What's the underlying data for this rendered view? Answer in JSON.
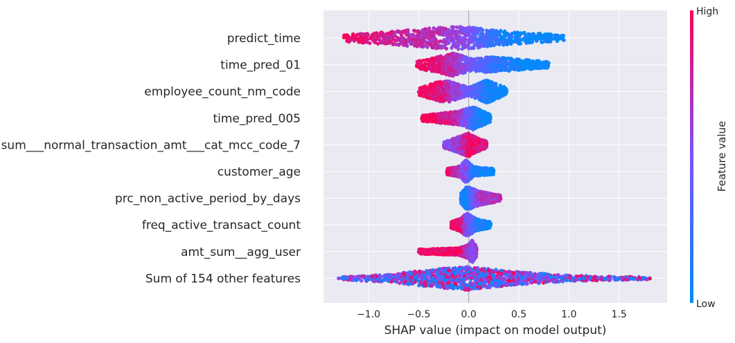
{
  "chart_data": {
    "type": "scatter",
    "subtype": "shap-beeswarm",
    "xlabel": "SHAP value (impact on model output)",
    "xlim": [
      -1.45,
      1.98
    ],
    "xticks": [
      -1.0,
      -0.5,
      0.0,
      0.5,
      1.0,
      1.5
    ],
    "xtick_labels": [
      "−1.0",
      "−0.5",
      "0.0",
      "0.5",
      "1.0",
      "1.5"
    ],
    "grid": true,
    "colorbar": {
      "label": "Feature value",
      "high_label": "High",
      "low_label": "Low",
      "low_color": "#008bfb",
      "high_color": "#ff0052"
    },
    "features": [
      {
        "name": "predict_time",
        "x_min": -1.25,
        "x_max": 0.95,
        "shape": [
          [
            -1.25,
            0.3,
            0.95
          ],
          [
            -0.8,
            0.55,
            0.8
          ],
          [
            -0.3,
            0.9,
            0.7
          ],
          [
            -0.02,
            1.0,
            0.5
          ],
          [
            0.2,
            0.7,
            0.2
          ],
          [
            0.5,
            0.5,
            0.05
          ],
          [
            0.95,
            0.25,
            0.0
          ]
        ]
      },
      {
        "name": "time_pred_01",
        "x_min": -0.52,
        "x_max": 0.8,
        "shape": [
          [
            -0.52,
            0.3,
            0.95
          ],
          [
            -0.3,
            0.7,
            0.85
          ],
          [
            -0.15,
            1.0,
            0.7
          ],
          [
            0.0,
            0.6,
            0.45
          ],
          [
            0.25,
            0.65,
            0.2
          ],
          [
            0.5,
            0.5,
            0.05
          ],
          [
            0.8,
            0.25,
            0.0
          ]
        ]
      },
      {
        "name": "employee_count_nm_code",
        "x_min": -0.5,
        "x_max": 0.38,
        "shape": [
          [
            -0.5,
            0.3,
            0.95
          ],
          [
            -0.3,
            0.85,
            0.9
          ],
          [
            -0.2,
            0.9,
            0.7
          ],
          [
            0.0,
            0.35,
            0.4
          ],
          [
            0.18,
            1.0,
            0.1
          ],
          [
            0.38,
            0.3,
            0.0
          ]
        ]
      },
      {
        "name": "time_pred_005",
        "x_min": -0.47,
        "x_max": 0.22,
        "shape": [
          [
            -0.47,
            0.25,
            0.95
          ],
          [
            -0.2,
            0.5,
            0.85
          ],
          [
            -0.1,
            0.6,
            0.7
          ],
          [
            0.05,
            1.0,
            0.15
          ],
          [
            0.22,
            0.3,
            0.0
          ]
        ]
      },
      {
        "name": "sum___normal_transaction_amt___cat_mcc_code_7",
        "x_min": -0.25,
        "x_max": 0.18,
        "shape": [
          [
            -0.25,
            0.25,
            0.55
          ],
          [
            -0.1,
            0.7,
            0.65
          ],
          [
            0.0,
            1.0,
            0.95
          ],
          [
            0.08,
            0.6,
            0.9
          ],
          [
            0.18,
            0.3,
            0.85
          ]
        ]
      },
      {
        "name": "customer_age",
        "x_min": -0.22,
        "x_max": 0.25,
        "shape": [
          [
            -0.22,
            0.25,
            0.9
          ],
          [
            -0.08,
            0.5,
            0.6
          ],
          [
            -0.03,
            1.0,
            0.5
          ],
          [
            0.05,
            0.4,
            0.1
          ],
          [
            0.25,
            0.25,
            0.0
          ]
        ]
      },
      {
        "name": "prc_non_active_period_by_days",
        "x_min": -0.08,
        "x_max": 0.32,
        "shape": [
          [
            -0.08,
            0.4,
            0.05
          ],
          [
            -0.02,
            1.0,
            0.1
          ],
          [
            0.05,
            0.8,
            0.5
          ],
          [
            0.1,
            0.6,
            0.65
          ],
          [
            0.32,
            0.25,
            0.7
          ]
        ]
      },
      {
        "name": "freq_active_transact_count",
        "x_min": -0.18,
        "x_max": 0.22,
        "shape": [
          [
            -0.18,
            0.25,
            0.95
          ],
          [
            -0.08,
            0.6,
            0.85
          ],
          [
            -0.02,
            1.0,
            0.5
          ],
          [
            0.08,
            0.5,
            0.1
          ],
          [
            0.22,
            0.25,
            0.0
          ]
        ]
      },
      {
        "name": "amt_sum__agg_user",
        "x_min": -0.5,
        "x_max": 0.08,
        "shape": [
          [
            -0.5,
            0.2,
            0.95
          ],
          [
            -0.1,
            0.3,
            0.95
          ],
          [
            0.0,
            0.6,
            0.6
          ],
          [
            0.03,
            1.0,
            0.55
          ],
          [
            0.08,
            0.4,
            0.6
          ]
        ]
      },
      {
        "name": "Sum of 154 other features",
        "x_min": -1.3,
        "x_max": 1.82,
        "shape": [
          [
            -1.3,
            0.1,
            0.5
          ],
          [
            -0.8,
            0.35,
            0.5
          ],
          [
            -0.3,
            0.8,
            0.5
          ],
          [
            0.0,
            1.0,
            0.5
          ],
          [
            0.4,
            0.6,
            0.5
          ],
          [
            1.0,
            0.25,
            0.5
          ],
          [
            1.82,
            0.1,
            0.5
          ]
        ]
      }
    ]
  }
}
